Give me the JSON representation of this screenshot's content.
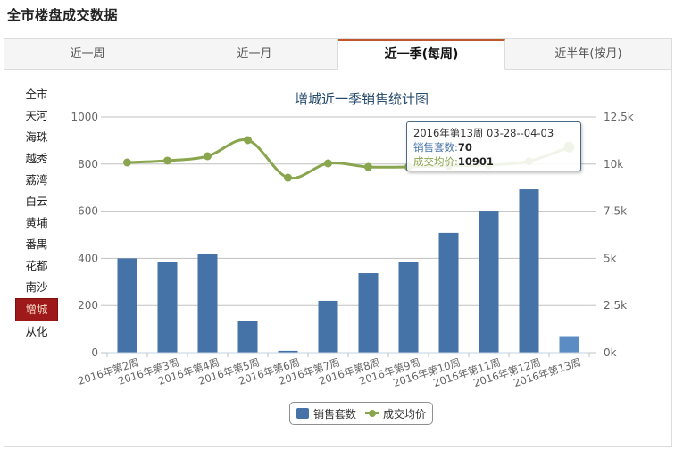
{
  "header": {
    "title": "全市楼盘成交数据"
  },
  "tabs": [
    {
      "label": "近一周",
      "active": false
    },
    {
      "label": "近一月",
      "active": false
    },
    {
      "label": "近一季(每周)",
      "active": true
    },
    {
      "label": "近半年(按月)",
      "active": false
    }
  ],
  "districts": [
    {
      "label": "全市"
    },
    {
      "label": "天河"
    },
    {
      "label": "海珠"
    },
    {
      "label": "越秀"
    },
    {
      "label": "荔湾"
    },
    {
      "label": "白云"
    },
    {
      "label": "黄埔"
    },
    {
      "label": "番禺"
    },
    {
      "label": "花都"
    },
    {
      "label": "南沙"
    },
    {
      "label": "增城",
      "active": true
    },
    {
      "label": "从化"
    }
  ],
  "colors": {
    "bar": "#4572a7",
    "bar_hover": "#5b8cc4",
    "line": "#89a54e",
    "active_district": "#9e1a1a",
    "active_tab_border": "#c0582a"
  },
  "tooltip": {
    "title": "2016年第13周 03-28--04-03",
    "series1_label": "销售套数:",
    "series1_value": "70",
    "series2_label": "成交均价:",
    "series2_value": "10901"
  },
  "legend": {
    "series1": "销售套数",
    "series2": "成交均价"
  },
  "chart_data": {
    "type": "bar+line",
    "title": "增城近一季销售统计图",
    "categories": [
      "2016年第2周",
      "2016年第3周",
      "2016年第4周",
      "2016年第5周",
      "2016年第6周",
      "2016年第7周",
      "2016年第8周",
      "2016年第9周",
      "2016年第10周",
      "2016年第11周",
      "2016年第12周",
      "2016年第13周"
    ],
    "series": [
      {
        "name": "销售套数",
        "type": "bar",
        "axis": "left",
        "values": [
          400,
          383,
          420,
          133,
          8,
          220,
          337,
          383,
          508,
          602,
          693,
          70
        ]
      },
      {
        "name": "成交均价",
        "type": "line",
        "axis": "right",
        "values": [
          10085,
          10180,
          10417,
          11269,
          9280,
          10038,
          9848,
          9850,
          9900,
          9950,
          10150,
          10901
        ]
      }
    ],
    "y_left": {
      "ticks": [
        "0",
        "200",
        "400",
        "600",
        "800",
        "1000"
      ],
      "ylim": [
        0,
        1000
      ]
    },
    "y_right": {
      "ticks": [
        "0k",
        "2.5k",
        "5k",
        "7.5k",
        "10k",
        "12.5k"
      ],
      "ylim": [
        0,
        12500
      ]
    },
    "grid": true,
    "legend_position": "bottom-center"
  }
}
